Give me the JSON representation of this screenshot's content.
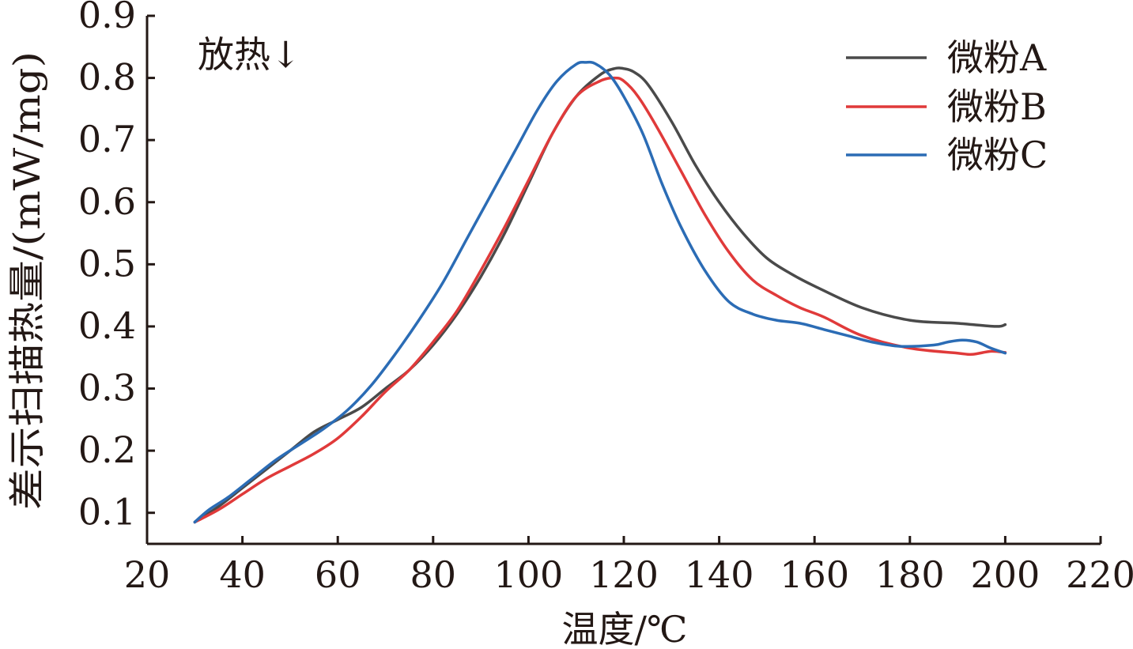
{
  "chart_data": {
    "type": "line",
    "title": "",
    "xlabel": "温度/℃",
    "ylabel": "差示扫描热量/(mW/mg)",
    "annotation": "放热↓",
    "xlim": [
      20,
      220
    ],
    "ylim": [
      0.05,
      0.9
    ],
    "xticks": [
      20,
      40,
      60,
      80,
      100,
      120,
      140,
      160,
      180,
      200,
      220
    ],
    "yticks": [
      0.1,
      0.2,
      0.3,
      0.4,
      0.5,
      0.6,
      0.7,
      0.8,
      0.9
    ],
    "xtick_labels": [
      "20",
      "40",
      "60",
      "80",
      "100",
      "120",
      "140",
      "160",
      "180",
      "200",
      "220"
    ],
    "ytick_labels": [
      "0.1",
      "0.2",
      "0.3",
      "0.4",
      "0.5",
      "0.6",
      "0.7",
      "0.8",
      "0.9"
    ],
    "grid": false,
    "legend_position": "top-right",
    "series": [
      {
        "name": "微粉A",
        "color": "#4a4a4a",
        "x": [
          30,
          35,
          40,
          45,
          50,
          55,
          60,
          65,
          70,
          75,
          80,
          85,
          90,
          95,
          100,
          105,
          110,
          115,
          118,
          120,
          122,
          125,
          130,
          135,
          140,
          145,
          150,
          155,
          160,
          170,
          180,
          190,
          198,
          200
        ],
        "y": [
          0.085,
          0.11,
          0.14,
          0.17,
          0.2,
          0.23,
          0.25,
          0.27,
          0.3,
          0.33,
          0.37,
          0.42,
          0.48,
          0.55,
          0.63,
          0.71,
          0.77,
          0.805,
          0.815,
          0.815,
          0.81,
          0.79,
          0.73,
          0.66,
          0.6,
          0.55,
          0.51,
          0.485,
          0.465,
          0.43,
          0.41,
          0.405,
          0.4,
          0.403
        ]
      },
      {
        "name": "微粉B",
        "color": "#e03a3a",
        "x": [
          30,
          35,
          40,
          45,
          50,
          55,
          60,
          65,
          70,
          75,
          80,
          85,
          90,
          95,
          100,
          105,
          110,
          115,
          118,
          120,
          123,
          127,
          132,
          137,
          142,
          147,
          152,
          157,
          162,
          170,
          180,
          190,
          193,
          197,
          200
        ],
        "y": [
          0.085,
          0.105,
          0.13,
          0.155,
          0.175,
          0.195,
          0.22,
          0.255,
          0.295,
          0.33,
          0.375,
          0.425,
          0.49,
          0.56,
          0.635,
          0.71,
          0.77,
          0.795,
          0.8,
          0.795,
          0.77,
          0.72,
          0.65,
          0.58,
          0.52,
          0.475,
          0.45,
          0.43,
          0.415,
          0.385,
          0.365,
          0.357,
          0.355,
          0.36,
          0.358
        ]
      },
      {
        "name": "微粉C",
        "color": "#2b6cb5",
        "x": [
          30,
          33,
          37,
          42,
          47,
          52,
          57,
          62,
          67,
          72,
          77,
          82,
          87,
          92,
          97,
          102,
          106,
          110,
          112,
          114,
          117,
          120,
          124,
          128,
          132,
          137,
          142,
          147,
          152,
          157,
          162,
          167,
          172,
          178,
          185,
          188,
          191,
          194,
          197,
          200
        ],
        "y": [
          0.085,
          0.105,
          0.125,
          0.155,
          0.185,
          0.21,
          0.235,
          0.265,
          0.305,
          0.355,
          0.41,
          0.47,
          0.54,
          0.61,
          0.68,
          0.75,
          0.795,
          0.822,
          0.825,
          0.823,
          0.805,
          0.77,
          0.71,
          0.63,
          0.56,
          0.49,
          0.44,
          0.42,
          0.41,
          0.405,
          0.395,
          0.385,
          0.375,
          0.368,
          0.37,
          0.375,
          0.378,
          0.375,
          0.365,
          0.357
        ]
      }
    ]
  }
}
